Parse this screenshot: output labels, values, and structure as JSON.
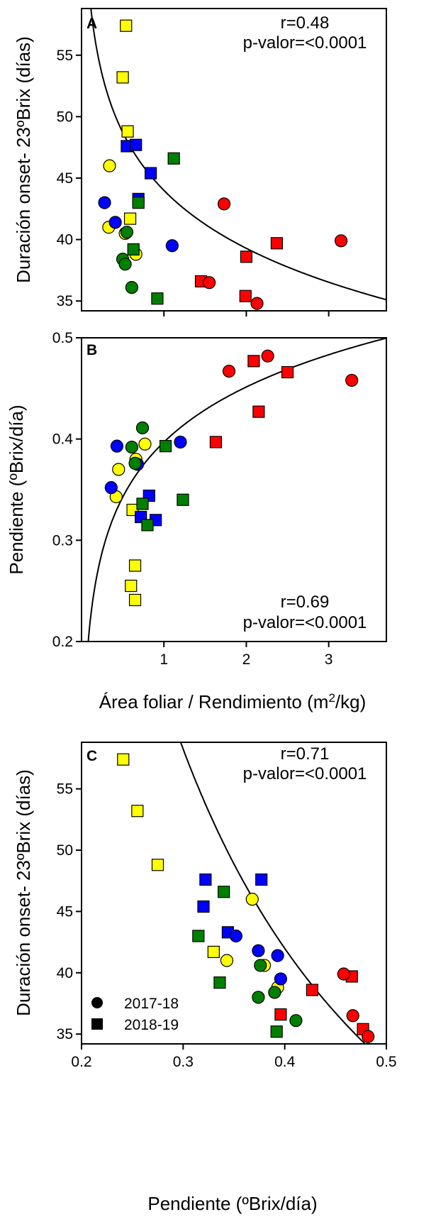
{
  "chart_data": [
    {
      "panel": "A",
      "type": "scatter",
      "xlabel": "",
      "ylabel": "Duración onset- 23ºBrix (días)",
      "xlim": [
        0,
        3.7
      ],
      "ylim": [
        34.2,
        58.8
      ],
      "xticks": [
        1,
        2,
        3
      ],
      "xtick_labels": [
        "",
        "",
        ""
      ],
      "yticks": [
        35,
        40,
        45,
        50,
        55
      ],
      "ytick_labels": [
        "35",
        "40",
        "45",
        "50",
        "55"
      ],
      "annotations": [
        "r=0.48",
        "p-valor=<0.0001"
      ],
      "fit_curve": "logarithmic",
      "series": [
        {
          "color": "#ffff00",
          "marker": "square",
          "points": [
            [
              0.54,
              57.4
            ],
            [
              0.5,
              53.2
            ],
            [
              0.56,
              48.8
            ],
            [
              0.59,
              41.7
            ]
          ]
        },
        {
          "color": "#ffff00",
          "marker": "circle",
          "points": [
            [
              0.34,
              46.0
            ],
            [
              0.33,
              41.0
            ],
            [
              0.53,
              40.5
            ],
            [
              0.66,
              38.8
            ]
          ]
        },
        {
          "color": "#0000ff",
          "marker": "square",
          "points": [
            [
              0.55,
              47.6
            ],
            [
              0.66,
              47.7
            ],
            [
              0.84,
              45.4
            ],
            [
              0.69,
              43.3
            ]
          ]
        },
        {
          "color": "#0000ff",
          "marker": "circle",
          "points": [
            [
              0.28,
              43.0
            ],
            [
              0.41,
              41.4
            ],
            [
              1.1,
              39.5
            ]
          ]
        },
        {
          "color": "#008000",
          "marker": "square",
          "points": [
            [
              1.12,
              46.6
            ],
            [
              0.69,
              43.0
            ],
            [
              0.63,
              39.2
            ],
            [
              0.92,
              35.2
            ]
          ]
        },
        {
          "color": "#008000",
          "marker": "circle",
          "points": [
            [
              0.55,
              40.6
            ],
            [
              0.5,
              38.4
            ],
            [
              0.53,
              38.0
            ],
            [
              0.61,
              36.1
            ]
          ]
        },
        {
          "color": "#ff0000",
          "marker": "square",
          "points": [
            [
              1.45,
              36.6
            ],
            [
              1.99,
              35.4
            ],
            [
              2.0,
              38.6
            ],
            [
              2.37,
              39.7
            ]
          ]
        },
        {
          "color": "#ff0000",
          "marker": "circle",
          "points": [
            [
              1.73,
              42.9
            ],
            [
              1.55,
              36.5
            ],
            [
              2.13,
              34.8
            ],
            [
              3.15,
              39.9
            ]
          ]
        }
      ]
    },
    {
      "panel": "B",
      "type": "scatter",
      "xlabel": "Área foliar / Rendimiento (m²/kg)",
      "ylabel": "Pendiente (ºBrix/día)",
      "xlim": [
        0,
        3.7
      ],
      "ylim": [
        0.2,
        0.5
      ],
      "xticks": [
        1,
        2,
        3
      ],
      "xtick_labels": [
        "1",
        "2",
        "3"
      ],
      "yticks": [
        0.2,
        0.3,
        0.4,
        0.5
      ],
      "ytick_labels": [
        "0.2",
        "0.3",
        "0.4",
        "0.5"
      ],
      "annotations": [
        "r=0.69",
        "p-valor=<0.0001"
      ],
      "fit_curve": "logarithmic",
      "series": [
        {
          "color": "#ffff00",
          "marker": "square",
          "points": [
            [
              0.62,
              0.33
            ],
            [
              0.65,
              0.275
            ],
            [
              0.6,
              0.255
            ],
            [
              0.65,
              0.241
            ]
          ]
        },
        {
          "color": "#ffff00",
          "marker": "circle",
          "points": [
            [
              0.77,
              0.395
            ],
            [
              0.66,
              0.38
            ],
            [
              0.45,
              0.37
            ],
            [
              0.42,
              0.343
            ]
          ]
        },
        {
          "color": "#0000ff",
          "marker": "square",
          "points": [
            [
              0.82,
              0.344
            ],
            [
              0.72,
              0.323
            ],
            [
              0.9,
              0.32
            ]
          ]
        },
        {
          "color": "#0000ff",
          "marker": "circle",
          "points": [
            [
              0.43,
              0.393
            ],
            [
              1.2,
              0.397
            ],
            [
              0.68,
              0.375
            ],
            [
              0.36,
              0.352
            ]
          ]
        },
        {
          "color": "#008000",
          "marker": "square",
          "points": [
            [
              1.02,
              0.393
            ],
            [
              1.23,
              0.34
            ],
            [
              0.74,
              0.336
            ],
            [
              0.8,
              0.315
            ]
          ]
        },
        {
          "color": "#008000",
          "marker": "circle",
          "points": [
            [
              0.74,
              0.411
            ],
            [
              0.61,
              0.392
            ],
            [
              0.65,
              0.376
            ]
          ]
        },
        {
          "color": "#ff0000",
          "marker": "square",
          "points": [
            [
              2.09,
              0.477
            ],
            [
              2.5,
              0.466
            ],
            [
              2.15,
              0.427
            ],
            [
              1.63,
              0.397
            ]
          ]
        },
        {
          "color": "#ff0000",
          "marker": "circle",
          "points": [
            [
              1.79,
              0.467
            ],
            [
              2.26,
              0.482
            ],
            [
              3.28,
              0.458
            ]
          ]
        }
      ]
    },
    {
      "panel": "C",
      "type": "scatter",
      "xlabel": "Pendiente (ºBrix/día)",
      "ylabel": "Duración onset- 23ºBrix (días)",
      "xlim": [
        0.2,
        0.5
      ],
      "ylim": [
        34.2,
        58.8
      ],
      "xticks": [
        0.2,
        0.3,
        0.4,
        0.5
      ],
      "xtick_labels": [
        "0.2",
        "0.3",
        "0.4",
        "0.5"
      ],
      "yticks": [
        35,
        40,
        45,
        50,
        55
      ],
      "ytick_labels": [
        "35",
        "40",
        "45",
        "50",
        "55"
      ],
      "annotations": [
        "r=0.71",
        "p-valor=<0.0001"
      ],
      "fit_curve": "power",
      "legend": {
        "placement": "bottom-left",
        "entries": [
          {
            "label": "2017-18",
            "marker": "circle"
          },
          {
            "label": "2018-19",
            "marker": "square"
          }
        ]
      },
      "series": [
        {
          "color": "#ffff00",
          "marker": "square",
          "points": [
            [
              0.241,
              57.4
            ],
            [
              0.255,
              53.2
            ],
            [
              0.275,
              48.8
            ],
            [
              0.33,
              41.7
            ]
          ]
        },
        {
          "color": "#ffff00",
          "marker": "circle",
          "points": [
            [
              0.368,
              46.0
            ],
            [
              0.343,
              41.0
            ],
            [
              0.38,
              40.6
            ],
            [
              0.393,
              38.8
            ]
          ]
        },
        {
          "color": "#0000ff",
          "marker": "square",
          "points": [
            [
              0.322,
              47.6
            ],
            [
              0.377,
              47.6
            ],
            [
              0.32,
              45.4
            ],
            [
              0.344,
              43.3
            ]
          ]
        },
        {
          "color": "#0000ff",
          "marker": "circle",
          "points": [
            [
              0.352,
              43.0
            ],
            [
              0.374,
              41.8
            ],
            [
              0.393,
              41.4
            ],
            [
              0.396,
              39.5
            ]
          ]
        },
        {
          "color": "#008000",
          "marker": "square",
          "points": [
            [
              0.34,
              46.6
            ],
            [
              0.315,
              43.0
            ],
            [
              0.336,
              39.2
            ],
            [
              0.392,
              35.2
            ]
          ]
        },
        {
          "color": "#008000",
          "marker": "circle",
          "points": [
            [
              0.376,
              40.6
            ],
            [
              0.374,
              38.0
            ],
            [
              0.39,
              38.4
            ],
            [
              0.411,
              36.1
            ]
          ]
        },
        {
          "color": "#ff0000",
          "marker": "square",
          "points": [
            [
              0.466,
              39.7
            ],
            [
              0.427,
              38.6
            ],
            [
              0.396,
              36.6
            ],
            [
              0.477,
              35.4
            ]
          ]
        },
        {
          "color": "#ff0000",
          "marker": "circle",
          "points": [
            [
              0.458,
              39.9
            ],
            [
              0.467,
              36.5
            ],
            [
              0.482,
              34.8
            ]
          ]
        }
      ]
    }
  ]
}
